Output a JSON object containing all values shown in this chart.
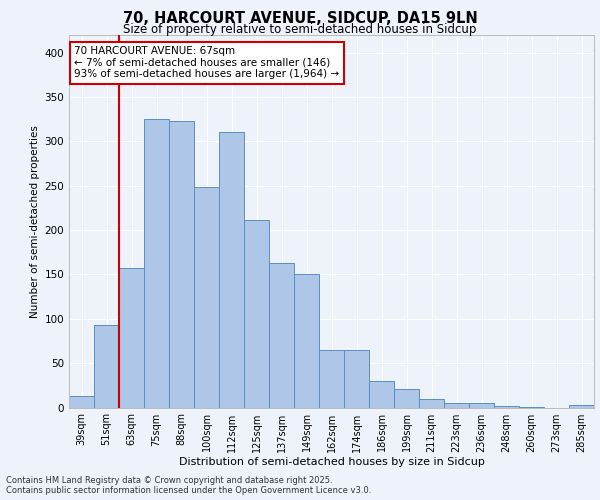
{
  "title_line1": "70, HARCOURT AVENUE, SIDCUP, DA15 9LN",
  "title_line2": "Size of property relative to semi-detached houses in Sidcup",
  "xlabel": "Distribution of semi-detached houses by size in Sidcup",
  "ylabel": "Number of semi-detached properties",
  "footer_line1": "Contains HM Land Registry data © Crown copyright and database right 2025.",
  "footer_line2": "Contains public sector information licensed under the Open Government Licence v3.0.",
  "annotation_title": "70 HARCOURT AVENUE: 67sqm",
  "annotation_line1": "← 7% of semi-detached houses are smaller (146)",
  "annotation_line2": "93% of semi-detached houses are larger (1,964) →",
  "bar_labels": [
    "39sqm",
    "51sqm",
    "63sqm",
    "75sqm",
    "88sqm",
    "100sqm",
    "112sqm",
    "125sqm",
    "137sqm",
    "149sqm",
    "162sqm",
    "174sqm",
    "186sqm",
    "199sqm",
    "211sqm",
    "223sqm",
    "236sqm",
    "248sqm",
    "260sqm",
    "273sqm",
    "285sqm"
  ],
  "bar_values": [
    13,
    93,
    157,
    325,
    323,
    249,
    311,
    211,
    163,
    150,
    65,
    65,
    30,
    21,
    10,
    5,
    5,
    2,
    1,
    0,
    3
  ],
  "bar_color": "#aec6e8",
  "bar_edge_color": "#5a8fc2",
  "ylim": [
    0,
    420
  ],
  "yticks": [
    0,
    50,
    100,
    150,
    200,
    250,
    300,
    350,
    400
  ],
  "background_color": "#eef2fb",
  "plot_bg_color": "#eef2fb",
  "grid_color": "#ffffff",
  "annotation_box_color": "#ffffff",
  "annotation_box_edge": "#cc0000",
  "red_line_color": "#cc0000"
}
